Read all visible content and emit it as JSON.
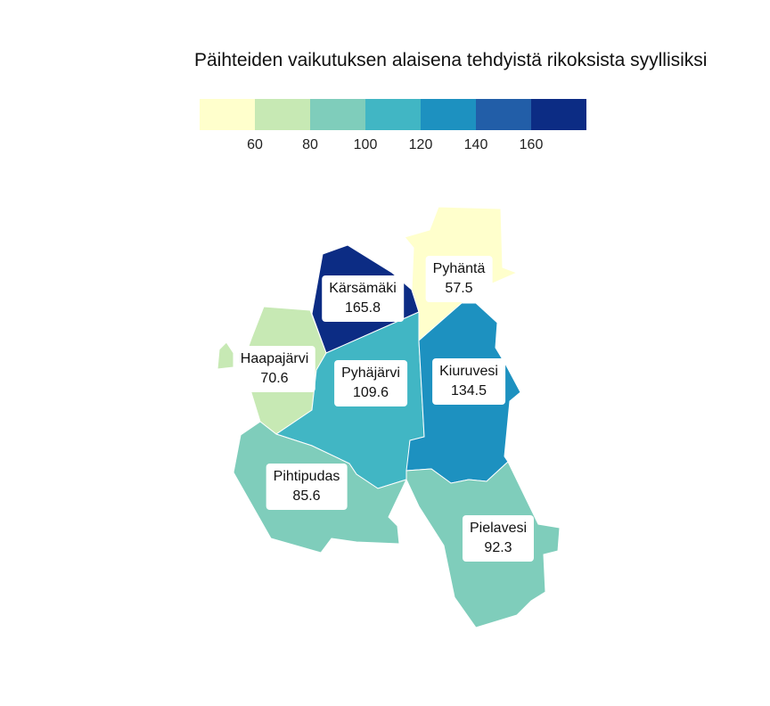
{
  "title": "Päihteiden vaikutuksen alaisena tehdyistä rikoksista syyllisiksi",
  "legend": {
    "colors": [
      "#ffffcc",
      "#c7e9b4",
      "#7fcdbb",
      "#41b6c4",
      "#1d91c0",
      "#225ea8",
      "#0c2c84"
    ],
    "ticks": [
      "60",
      "80",
      "100",
      "120",
      "140",
      "160"
    ]
  },
  "regions": [
    {
      "name": "Kärsämäki",
      "value": "165.8",
      "color": "#0c2c84"
    },
    {
      "name": "Pyhäntä",
      "value": "57.5",
      "color": "#ffffcc"
    },
    {
      "name": "Haapajärvi",
      "value": "70.6",
      "color": "#c7e9b4"
    },
    {
      "name": "Pyhäjärvi",
      "value": "109.6",
      "color": "#41b6c4"
    },
    {
      "name": "Kiuruvesi",
      "value": "134.5",
      "color": "#1d91c0"
    },
    {
      "name": "Pihtipudas",
      "value": "85.6",
      "color": "#7fcdbb"
    },
    {
      "name": "Pielavesi",
      "value": "92.3",
      "color": "#7fcdbb"
    }
  ]
}
